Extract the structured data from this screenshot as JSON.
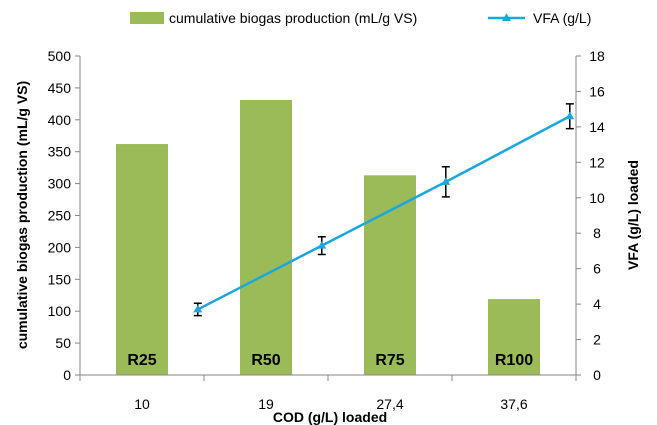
{
  "chart_data": {
    "type": "bar",
    "categories": [
      "10",
      "19",
      "27,4",
      "37,6"
    ],
    "bar_labels": [
      "R25",
      "R50",
      "R75",
      "R100"
    ],
    "xlabel": "COD (g/L) loaded",
    "ylabel": "cumulative biogas production (mL/g VS)",
    "y2label": "VFA (g/L) loaded",
    "ylim": [
      0,
      500
    ],
    "y2lim": [
      0,
      18
    ],
    "yticks": [
      "0",
      "50",
      "100",
      "150",
      "200",
      "250",
      "300",
      "350",
      "400",
      "450",
      "500"
    ],
    "y2ticks": [
      "0",
      "2",
      "4",
      "6",
      "8",
      "10",
      "12",
      "14",
      "16",
      "18"
    ],
    "grid": false,
    "legend_position": "top",
    "series": [
      {
        "name": "cumulative biogas production (mL/g VS)",
        "type": "bar",
        "axis": "left",
        "color": "#9BBB59",
        "values": [
          362,
          431,
          313,
          119
        ]
      },
      {
        "name": "VFA (g/L)",
        "type": "line",
        "axis": "right",
        "marker": "triangle",
        "color": "#1AA7DF",
        "values": [
          3.7,
          7.3,
          10.9,
          14.6
        ],
        "errors": [
          0.35,
          0.5,
          0.85,
          0.7
        ]
      }
    ]
  }
}
